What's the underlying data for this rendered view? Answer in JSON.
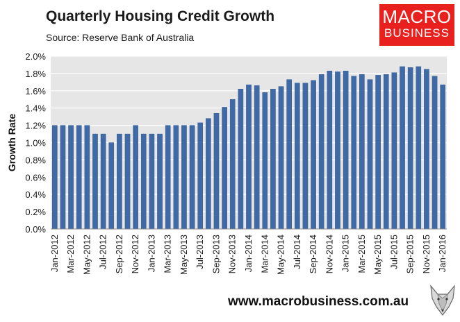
{
  "title": "Quarterly Housing Credit Growth",
  "subtitle": "Source: Reserve Bank of Australia",
  "logo": {
    "line1": "MACRO",
    "line2": "BUSINESS"
  },
  "website": "www.macrobusiness.com.au",
  "colors": {
    "bar": "#3f6aa6",
    "bar_edge": "#2f5590",
    "logo_bg": "#e8211f",
    "plot_bg": "#e6e6e6",
    "grid": "#ffffff"
  },
  "icons": {
    "logo_mascot": "wolf-head-icon"
  },
  "chart_data": {
    "type": "bar",
    "title": "Quarterly Housing Credit Growth",
    "ylabel": "Growth Rate",
    "xlabel": "",
    "ylim": [
      0,
      2.0
    ],
    "ytick_step": 0.2,
    "ytick_labels": [
      "0.0%",
      "0.2%",
      "0.4%",
      "0.6%",
      "0.8%",
      "1.0%",
      "1.2%",
      "1.4%",
      "1.6%",
      "1.8%",
      "2.0%"
    ],
    "x_tick_labels": [
      "Jan-2012",
      "Mar-2012",
      "May-2012",
      "Jul-2012",
      "Sep-2012",
      "Nov-2012",
      "Jan-2013",
      "Mar-2013",
      "May-2013",
      "Jul-2013",
      "Sep-2013",
      "Nov-2013",
      "Jan-2014",
      "Mar-2014",
      "May-2014",
      "Jul-2014",
      "Sep-2014",
      "Nov-2014",
      "Jan-2015",
      "Mar-2015",
      "May-2015",
      "Jul-2015",
      "Sep-2015",
      "Nov-2015",
      "Jan-2016"
    ],
    "grid": true,
    "categories": [
      "Jan-2012",
      "Feb-2012",
      "Mar-2012",
      "Apr-2012",
      "May-2012",
      "Jun-2012",
      "Jul-2012",
      "Aug-2012",
      "Sep-2012",
      "Oct-2012",
      "Nov-2012",
      "Dec-2012",
      "Jan-2013",
      "Feb-2013",
      "Mar-2013",
      "Apr-2013",
      "May-2013",
      "Jun-2013",
      "Jul-2013",
      "Aug-2013",
      "Sep-2013",
      "Oct-2013",
      "Nov-2013",
      "Dec-2013",
      "Jan-2014",
      "Feb-2014",
      "Mar-2014",
      "Apr-2014",
      "May-2014",
      "Jun-2014",
      "Jul-2014",
      "Aug-2014",
      "Sep-2014",
      "Oct-2014",
      "Nov-2014",
      "Dec-2014",
      "Jan-2015",
      "Feb-2015",
      "Mar-2015",
      "Apr-2015",
      "May-2015",
      "Jun-2015",
      "Jul-2015",
      "Aug-2015",
      "Sep-2015",
      "Oct-2015",
      "Nov-2015",
      "Dec-2015",
      "Jan-2016"
    ],
    "values": [
      1.2,
      1.2,
      1.2,
      1.2,
      1.2,
      1.1,
      1.1,
      1.0,
      1.1,
      1.1,
      1.2,
      1.1,
      1.1,
      1.1,
      1.2,
      1.2,
      1.2,
      1.2,
      1.23,
      1.28,
      1.34,
      1.41,
      1.5,
      1.62,
      1.67,
      1.66,
      1.58,
      1.62,
      1.65,
      1.73,
      1.69,
      1.69,
      1.72,
      1.79,
      1.83,
      1.82,
      1.83,
      1.77,
      1.79,
      1.73,
      1.78,
      1.79,
      1.81,
      1.88,
      1.87,
      1.88,
      1.85,
      1.77,
      1.67
    ]
  }
}
